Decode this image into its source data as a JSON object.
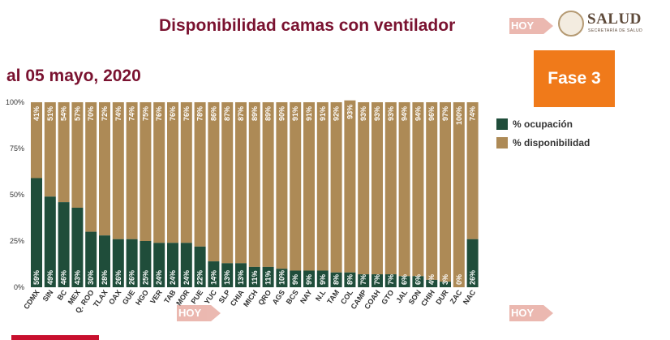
{
  "header": {
    "title": "Disponibilidad camas con ventilador",
    "subtitle": "al 05 mayo, 2020",
    "badge": "Fase 3",
    "logo_name": "SALUD",
    "logo_sub": "SECRETARÍA DE SALUD",
    "watermark": "HOY"
  },
  "chart_data": {
    "type": "bar",
    "stacked": true,
    "categories": [
      "CDMX",
      "SIN",
      "BC",
      "MEX",
      "Q. ROO",
      "TLAX",
      "OAX",
      "GUE",
      "HGO",
      "VER",
      "TAB",
      "MOR",
      "PUE",
      "YUC",
      "SLP",
      "CHIA",
      "MICH",
      "QRO",
      "AGS",
      "BCS",
      "NAY",
      "N.L",
      "TAM",
      "COL",
      "CAMP",
      "COAH",
      "GTO",
      "JAL",
      "SON",
      "CHIH",
      "DUR",
      "ZAC",
      "NAC"
    ],
    "series": [
      {
        "name": "% ocupación",
        "color": "#1f4d3a",
        "values": [
          59,
          49,
          46,
          43,
          30,
          28,
          26,
          26,
          25,
          24,
          24,
          24,
          22,
          14,
          13,
          13,
          11,
          11,
          10,
          9,
          9,
          9,
          8,
          8,
          7,
          7,
          7,
          6,
          6,
          4,
          3,
          0,
          26
        ]
      },
      {
        "name": "% disponibilidad",
        "color": "#ad8a56",
        "values": [
          41,
          51,
          54,
          57,
          70,
          72,
          74,
          74,
          75,
          76,
          76,
          76,
          78,
          86,
          87,
          87,
          89,
          89,
          90,
          91,
          91,
          91,
          92,
          93,
          93,
          93,
          93,
          94,
          94,
          96,
          97,
          100,
          74
        ]
      }
    ],
    "value_suffix": "%",
    "y_ticks": [
      0,
      25,
      50,
      75,
      100
    ],
    "y_tick_labels": [
      "0%",
      "25%",
      "50%",
      "75%",
      "100%"
    ],
    "ylim": [
      0,
      100
    ],
    "legend_position": "right"
  }
}
